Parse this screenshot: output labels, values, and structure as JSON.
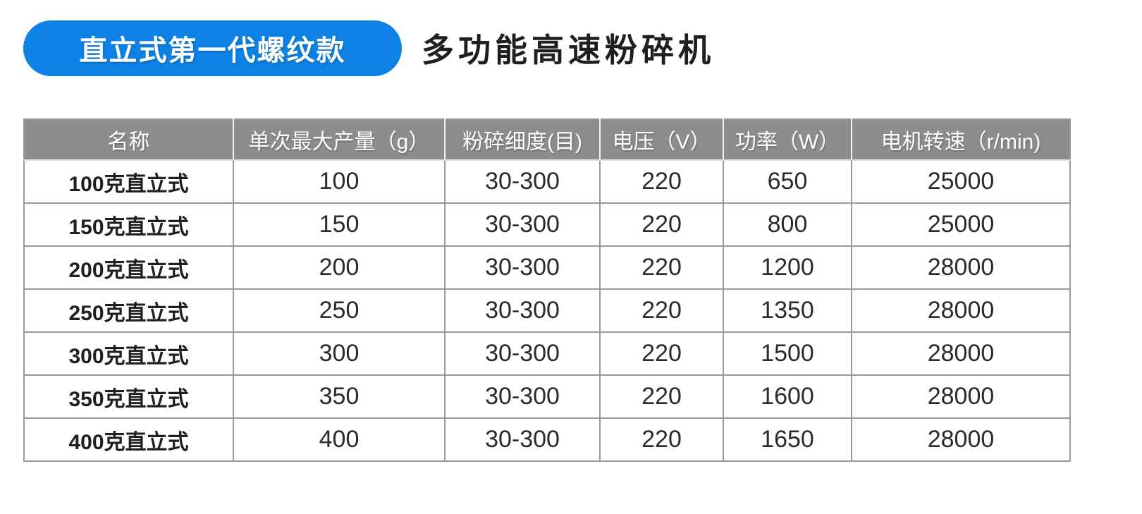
{
  "header": {
    "badge_label": "直立式第一代螺纹款",
    "title": "多功能高速粉碎机"
  },
  "colors": {
    "badge_blue": "#0d82e4",
    "header_gray": "#8d8d8d",
    "border_gray": "#9a9a9a",
    "header_divider": "#f2f2f2",
    "text_dark": "#1f1f1f",
    "badge_text": "#ffffff"
  },
  "table": {
    "columns": [
      "名称",
      "单次最大产量（g）",
      "粉碎细度(目)",
      "电压（V）",
      "功率（W）",
      "电机转速（r/min)"
    ],
    "rows": [
      [
        "100克直立式",
        "100",
        "30-300",
        "220",
        "650",
        "25000"
      ],
      [
        "150克直立式",
        "150",
        "30-300",
        "220",
        "800",
        "25000"
      ],
      [
        "200克直立式",
        "200",
        "30-300",
        "220",
        "1200",
        "28000"
      ],
      [
        "250克直立式",
        "250",
        "30-300",
        "220",
        "1350",
        "28000"
      ],
      [
        "300克直立式",
        "300",
        "30-300",
        "220",
        "1500",
        "28000"
      ],
      [
        "350克直立式",
        "350",
        "30-300",
        "220",
        "1600",
        "28000"
      ],
      [
        "400克直立式",
        "400",
        "30-300",
        "220",
        "1650",
        "28000"
      ]
    ]
  }
}
